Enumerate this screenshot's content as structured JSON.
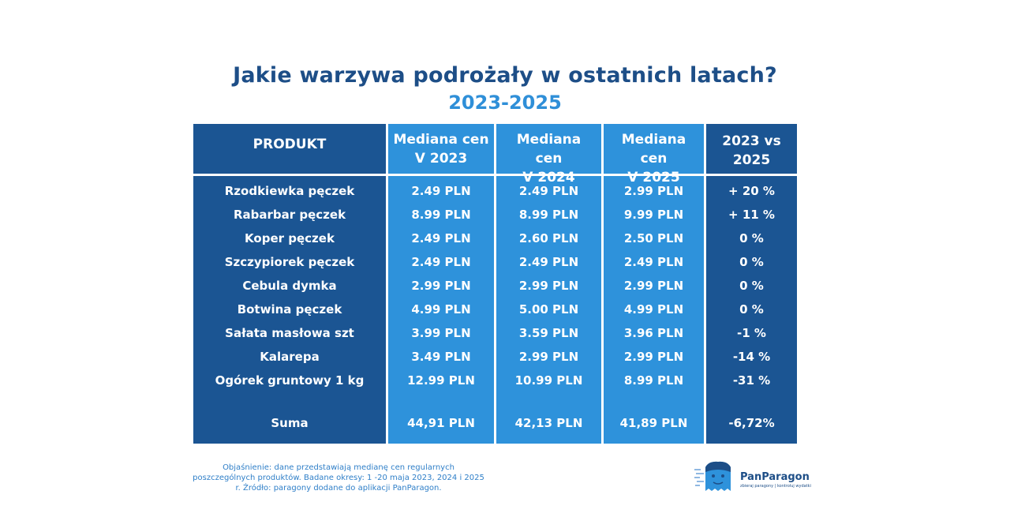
{
  "title": "Jakie warzywa podrożały w ostatnich latach?",
  "subtitle": "2023-2025",
  "headers": {
    "product": "PRODUKT",
    "c2023_l1": "Mediana cen",
    "c2023_l2": "V 2023",
    "c2024_l1": "Mediana cen",
    "c2024_l2": "V 2024",
    "c2025_l1": "Mediana cen",
    "c2025_l2": "V 2025",
    "change": "2023 vs 2025"
  },
  "rows": [
    {
      "product": "Rzodkiewka pęczek",
      "p2023": "2.49 PLN",
      "p2024": "2.49 PLN",
      "p2025": "2.99 PLN",
      "change": "+ 20 %"
    },
    {
      "product": "Rabarbar pęczek",
      "p2023": "8.99 PLN",
      "p2024": "8.99 PLN",
      "p2025": "9.99 PLN",
      "change": "+ 11 %"
    },
    {
      "product": "Koper pęczek",
      "p2023": "2.49 PLN",
      "p2024": "2.60 PLN",
      "p2025": "2.50 PLN",
      "change": "0 %"
    },
    {
      "product": "Szczypiorek pęczek",
      "p2023": "2.49 PLN",
      "p2024": "2.49 PLN",
      "p2025": "2.49 PLN",
      "change": "0 %"
    },
    {
      "product": "Cebula dymka",
      "p2023": "2.99 PLN",
      "p2024": "2.99 PLN",
      "p2025": "2.99 PLN",
      "change": "0 %"
    },
    {
      "product": "Botwina pęczek",
      "p2023": "4.99 PLN",
      "p2024": "5.00 PLN",
      "p2025": "4.99 PLN",
      "change": "0 %"
    },
    {
      "product": "Sałata masłowa szt",
      "p2023": "3.99 PLN",
      "p2024": "3.59 PLN",
      "p2025": "3.96 PLN",
      "change": "-1 %"
    },
    {
      "product": "Kalarepa",
      "p2023": "3.49 PLN",
      "p2024": "2.99 PLN",
      "p2025": "2.99 PLN",
      "change": "-14 %"
    },
    {
      "product": "Ogórek gruntowy 1 kg",
      "p2023": "12.99 PLN",
      "p2024": "10.99 PLN",
      "p2025": "8.99 PLN",
      "change": "-31 %"
    }
  ],
  "sum": {
    "product": "Suma",
    "p2023": "44,91 PLN",
    "p2024": "42,13 PLN",
    "p2025": "41,89 PLN",
    "change": "-6,72%"
  },
  "note": "Objaśnienie: dane przedstawiają medianę cen regularnych poszczególnych produktów. Badane okresy: 1 -20 maja 2023, 2024 i 2025 r. Źródło: paragony dodane do aplikacji PanParagon.",
  "logo": {
    "name": "PanParagon",
    "tagline": "zbieraj paragony | kontroluj wydatki"
  },
  "colors": {
    "dark": "#1b5593",
    "light": "#2e92db",
    "title": "#1d4e87",
    "subtitle": "#2f8fd8"
  }
}
